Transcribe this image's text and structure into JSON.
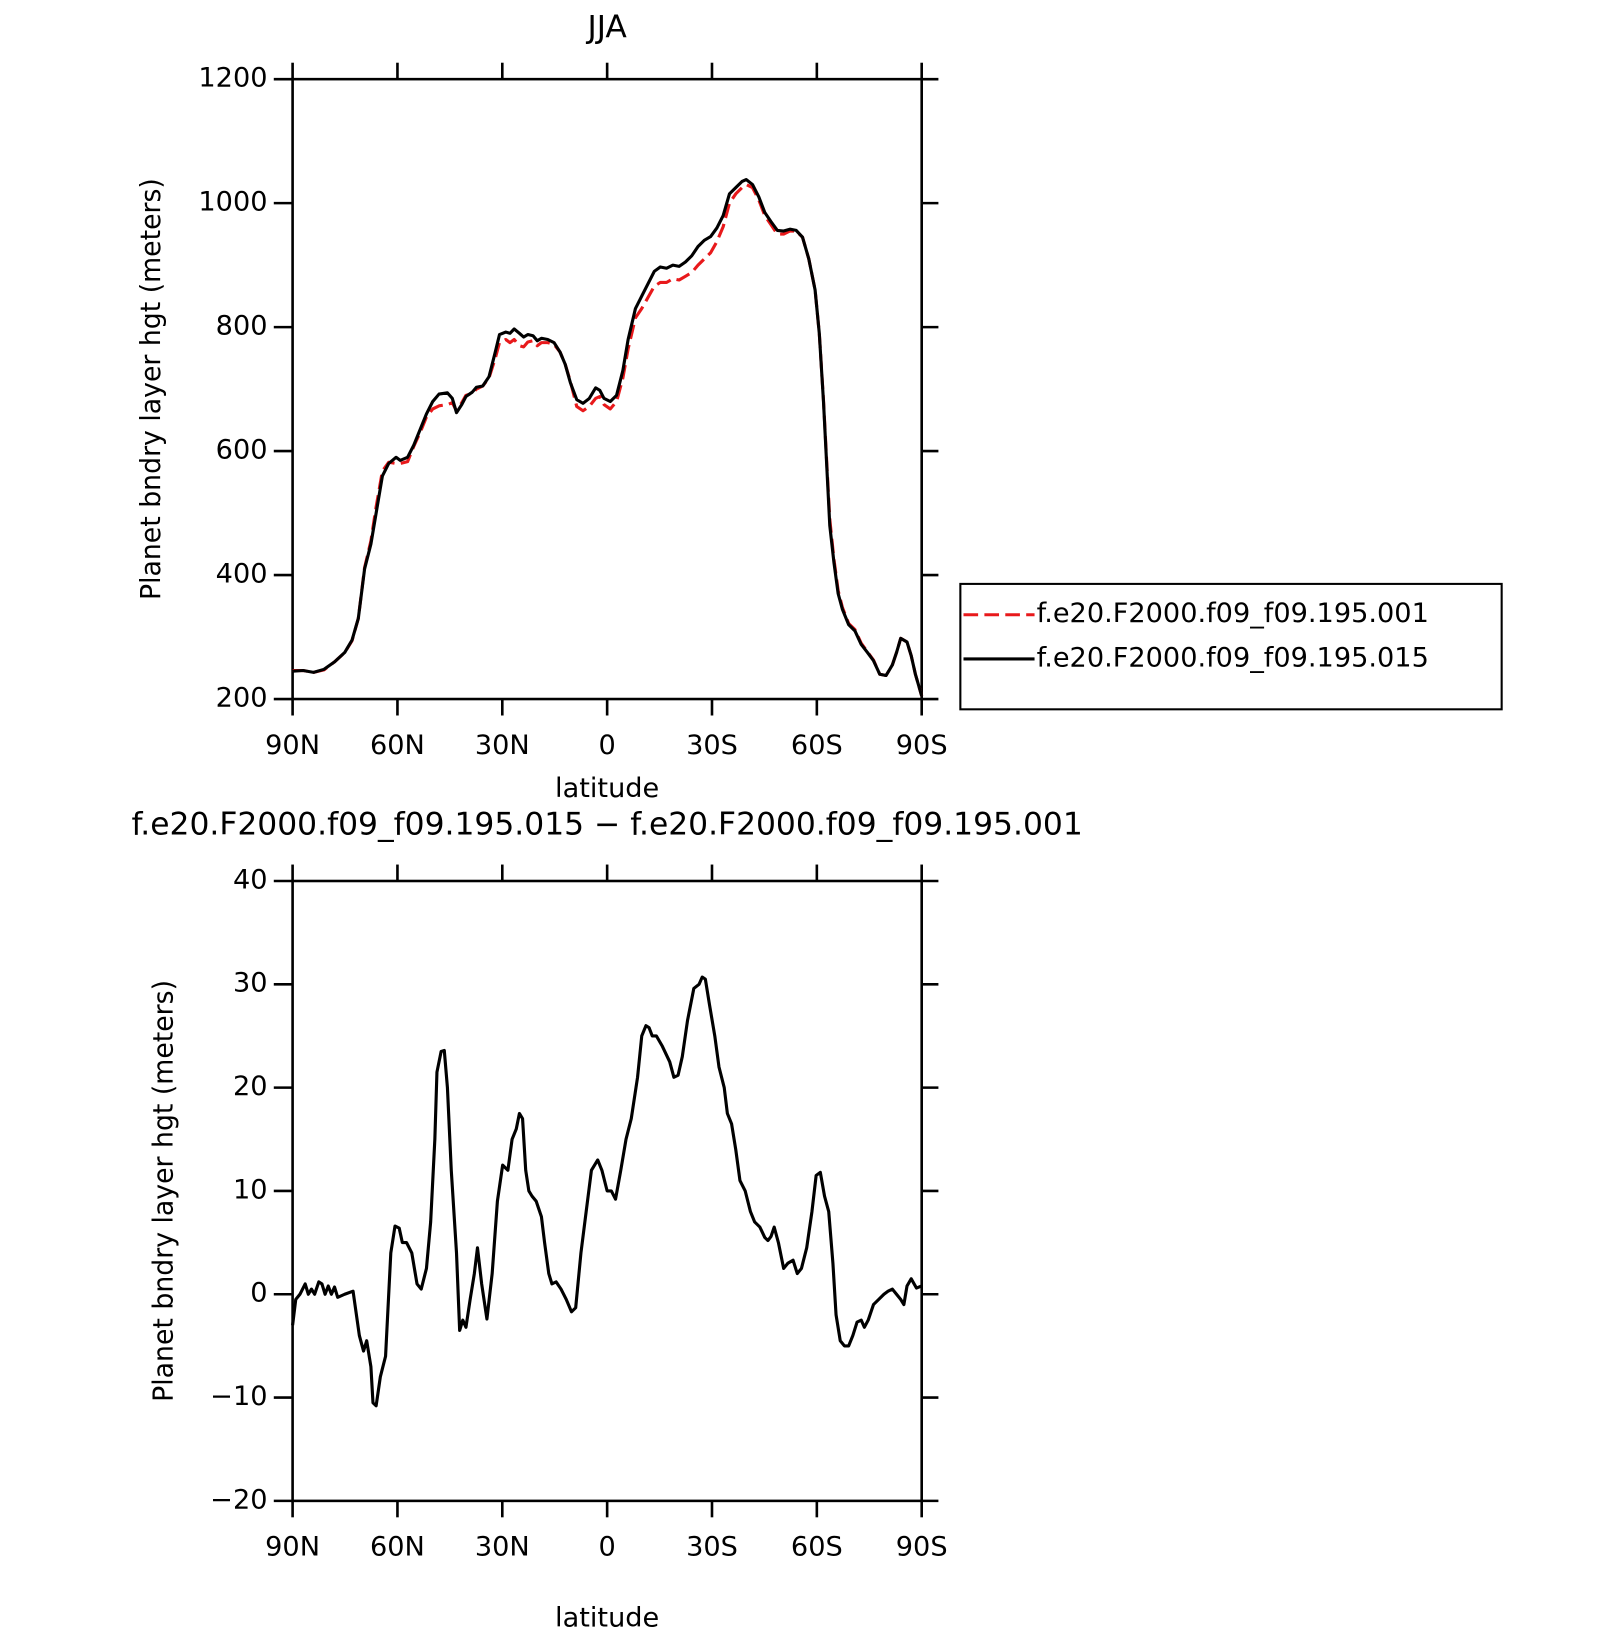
{
  "chart_data": [
    {
      "type": "line",
      "title": "JJA",
      "xlabel": "latitude",
      "ylabel": "Planet bndry layer hgt (meters)",
      "x": [
        90,
        87.0,
        84.0,
        81.0,
        78.0,
        75.1,
        73.0,
        71.2,
        69.4,
        67.6,
        66.1,
        64.3,
        62.5,
        60.4,
        59.2,
        57.1,
        55.3,
        53.5,
        51.7,
        49.9,
        48.1,
        45.7,
        44.3,
        43.1,
        41.6,
        40.4,
        38.6,
        37.4,
        35.6,
        33.8,
        32.0,
        30.8,
        29.0,
        27.8,
        26.6,
        25.1,
        23.9,
        22.7,
        21.2,
        20.0,
        18.8,
        17.0,
        15.2,
        13.5,
        12.0,
        10.5,
        8.7,
        6.9,
        5.1,
        3.3,
        2.1,
        0.9,
        -0.9,
        -2.7,
        -4.5,
        -6.0,
        -8.1,
        -9.9,
        -11.7,
        -13.5,
        -15.2,
        -17.0,
        -18.8,
        -20.6,
        -22.4,
        -24.2,
        -26.0,
        -27.8,
        -29.6,
        -31.4,
        -33.2,
        -35.0,
        -36.8,
        -38.6,
        -39.8,
        -41.6,
        -43.4,
        -45.1,
        -46.9,
        -48.7,
        -50.5,
        -52.3,
        -54.1,
        -55.9,
        -57.7,
        -59.5,
        -60.7,
        -61.9,
        -62.8,
        -63.7,
        -64.9,
        -66.1,
        -67.3,
        -69.1,
        -70.9,
        -72.7,
        -74.5,
        -76.2,
        -78.0,
        -79.8,
        -81.6,
        -82.8,
        -84.0,
        -85.8,
        -87.0,
        -88.2,
        -90
      ],
      "series": [
        {
          "name": "f.e20.F2000.f09_f09.195.001",
          "color": "#e8191b",
          "linestyle": "dashed",
          "values": [
            246,
            246,
            243,
            247,
            260,
            275,
            294,
            330,
            412,
            455,
            510,
            568,
            582,
            580,
            580,
            583,
            608,
            630,
            655,
            668,
            673,
            675,
            678,
            665,
            678,
            690,
            693,
            700,
            705,
            718,
            750,
            775,
            780,
            775,
            780,
            770,
            768,
            776,
            778,
            770,
            775,
            775,
            772,
            760,
            740,
            712,
            672,
            665,
            672,
            685,
            688,
            675,
            668,
            680,
            718,
            765,
            815,
            830,
            848,
            866,
            872,
            872,
            878,
            876,
            882,
            888,
            900,
            910,
            920,
            938,
            962,
            1000,
            1015,
            1025,
            1030,
            1025,
            1005,
            980,
            965,
            950,
            950,
            955,
            955,
            945,
            910,
            860,
            790,
            682,
            585,
            490,
            425,
            375,
            348,
            322,
            312,
            290,
            276,
            263,
            240,
            238,
            255,
            275,
            298,
            292,
            270,
            240,
            205
          ]
        },
        {
          "name": "f.e20.F2000.f09_f09.195.015",
          "color": "#000000",
          "linestyle": "solid",
          "values": [
            245,
            246,
            243,
            248,
            260,
            275,
            295,
            330,
            410,
            450,
            500,
            560,
            580,
            590,
            585,
            590,
            610,
            635,
            660,
            680,
            692,
            694,
            685,
            662,
            675,
            688,
            695,
            703,
            705,
            720,
            760,
            788,
            792,
            790,
            797,
            790,
            784,
            788,
            786,
            778,
            782,
            780,
            775,
            760,
            740,
            710,
            683,
            677,
            685,
            702,
            698,
            685,
            680,
            690,
            730,
            780,
            830,
            850,
            870,
            890,
            897,
            895,
            900,
            898,
            905,
            915,
            930,
            940,
            946,
            960,
            980,
            1015,
            1025,
            1035,
            1038,
            1030,
            1010,
            985,
            970,
            956,
            955,
            958,
            956,
            945,
            910,
            860,
            790,
            680,
            580,
            480,
            420,
            370,
            345,
            320,
            310,
            288,
            275,
            262,
            240,
            238,
            255,
            275,
            298,
            292,
            270,
            240,
            205
          ]
        }
      ],
      "xlim": [
        90,
        -90
      ],
      "xticks": [
        {
          "value": 90,
          "label": "90N"
        },
        {
          "value": 60,
          "label": "60N"
        },
        {
          "value": 30,
          "label": "30N"
        },
        0,
        {
          "value": -30,
          "label": "30S"
        },
        {
          "value": -60,
          "label": "60S"
        },
        {
          "value": -90,
          "label": "90S"
        }
      ],
      "ylim": [
        200,
        1200
      ],
      "yticks": [
        200,
        400,
        600,
        800,
        1000,
        1200
      ],
      "legend": "right"
    },
    {
      "type": "line",
      "title": "f.e20.F2000.f09_f09.195.015 − f.e20.F2000.f09_f09.195.001",
      "xlabel": "latitude",
      "ylabel": "Planet bndry layer hgt (meters)",
      "x": [
        90,
        89.1,
        87.9,
        86.4,
        85.5,
        84.6,
        83.7,
        82.5,
        81.6,
        80.7,
        79.8,
        78.9,
        78.0,
        77.1,
        75.1,
        72.7,
        70.9,
        69.7,
        68.8,
        67.6,
        67.0,
        66.1,
        64.9,
        63.4,
        61.9,
        60.7,
        59.5,
        58.6,
        57.4,
        55.9,
        54.4,
        53.2,
        51.7,
        50.5,
        49.3,
        48.7,
        47.5,
        46.6,
        45.7,
        44.6,
        43.1,
        42.2,
        41.3,
        40.4,
        39.2,
        38.0,
        37.1,
        35.9,
        34.4,
        32.9,
        31.4,
        29.9,
        28.4,
        27.2,
        26.0,
        25.1,
        24.2,
        23.3,
        22.4,
        21.5,
        20.3,
        18.8,
        17.9,
        16.7,
        15.8,
        14.6,
        13.2,
        11.7,
        10.2,
        9.0,
        7.5,
        6.0,
        4.5,
        2.7,
        1.5,
        0.0,
        -1.2,
        -2.4,
        -3.9,
        -5.4,
        -6.9,
        -8.7,
        -9.9,
        -11.1,
        -12.0,
        -12.9,
        -14.1,
        -15.8,
        -17.9,
        -19.1,
        -20.3,
        -21.5,
        -23.0,
        -24.8,
        -26.3,
        -27.2,
        -28.1,
        -29.3,
        -30.8,
        -32.0,
        -33.5,
        -34.4,
        -35.6,
        -36.8,
        -38.0,
        -39.5,
        -41.0,
        -42.2,
        -43.7,
        -45.1,
        -46.0,
        -46.9,
        -47.8,
        -49.0,
        -50.5,
        -51.7,
        -53.2,
        -54.4,
        -55.6,
        -57.1,
        -58.6,
        -59.8,
        -61.0,
        -62.2,
        -63.4,
        -64.6,
        -65.5,
        -66.7,
        -67.9,
        -69.1,
        -70.3,
        -71.5,
        -72.7,
        -73.6,
        -74.7,
        -76.2,
        -77.7,
        -79.2,
        -80.4,
        -81.6,
        -82.8,
        -84.0,
        -84.9,
        -85.8,
        -87.0,
        -88.5,
        -90.0
      ],
      "series": [
        {
          "color": "#000000",
          "linestyle": "solid",
          "values": [
            -3,
            -0.5,
            0,
            1,
            0,
            0.5,
            0,
            1.2,
            1,
            0,
            0.8,
            0,
            0.7,
            -0.3,
            0,
            0.3,
            -4,
            -5.5,
            -4.5,
            -7,
            -10.5,
            -10.8,
            -8,
            -6,
            4,
            6.6,
            6.4,
            5,
            5,
            4,
            1,
            0.5,
            2.5,
            7,
            15,
            21.5,
            23.5,
            23.6,
            20,
            12,
            4,
            -3.5,
            -2.5,
            -3.2,
            -0.5,
            2,
            4.5,
            1,
            -2.4,
            2,
            9,
            12.5,
            12,
            15,
            16,
            17.5,
            17,
            12,
            10,
            9.5,
            9,
            7.5,
            5,
            2,
            1,
            1.2,
            0.5,
            -0.5,
            -1.7,
            -1.3,
            4,
            8,
            12,
            13,
            12,
            10,
            10,
            9.2,
            12,
            15,
            17,
            21,
            25,
            26,
            25.8,
            25,
            25,
            24,
            22.5,
            21,
            21.2,
            23,
            26.5,
            29.6,
            30,
            30.7,
            30.5,
            28,
            25,
            22,
            20,
            17.5,
            16.5,
            14,
            11,
            10,
            8,
            7,
            6.5,
            5.5,
            5.2,
            5.6,
            6.5,
            5,
            2.5,
            3,
            3.3,
            2,
            2.5,
            4.5,
            8,
            11.5,
            11.8,
            9.5,
            8,
            3,
            -2,
            -4.5,
            -5,
            -5,
            -4,
            -2.7,
            -2.5,
            -3.2,
            -2.5,
            -1,
            -0.5,
            0,
            0.3,
            0.5,
            0,
            -0.5,
            -1,
            0.8,
            1.5,
            0.6,
            0.8
          ]
        }
      ],
      "xlim": [
        90,
        -90
      ],
      "xticks": [
        {
          "value": 90,
          "label": "90N"
        },
        {
          "value": 60,
          "label": "60N"
        },
        {
          "value": 30,
          "label": "30N"
        },
        0,
        {
          "value": -30,
          "label": "30S"
        },
        {
          "value": -60,
          "label": "60S"
        },
        {
          "value": -90,
          "label": "90S"
        }
      ],
      "ylim": [
        -20,
        40
      ],
      "yticks": [
        {
          "value": -20,
          "label": "−20"
        },
        {
          "value": -10,
          "label": "−10"
        },
        0,
        10,
        20,
        30,
        40
      ]
    }
  ]
}
